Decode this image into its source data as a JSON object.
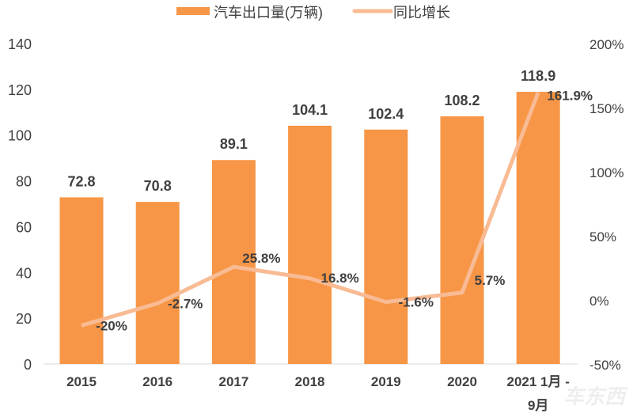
{
  "chart_data": {
    "type": "bar+line",
    "categories": [
      "2015",
      "2016",
      "2017",
      "2018",
      "2019",
      "2020",
      "2021 1月 - 9月"
    ],
    "category_lines": [
      [
        "2015"
      ],
      [
        "2016"
      ],
      [
        "2017"
      ],
      [
        "2018"
      ],
      [
        "2019"
      ],
      [
        "2020"
      ],
      [
        "2021 1月 -",
        "9月"
      ]
    ],
    "series": [
      {
        "name": "汽车出口量(万辆)",
        "type": "bar",
        "axis": "left",
        "values": [
          72.8,
          70.8,
          89.1,
          104.1,
          102.4,
          108.2,
          118.9
        ],
        "labels": [
          "72.8",
          "70.8",
          "89.1",
          "104.1",
          "102.4",
          "108.2",
          "118.9"
        ],
        "color": "#F79646"
      },
      {
        "name": "同比增长",
        "type": "line",
        "axis": "right",
        "values": [
          -20,
          -2.7,
          25.8,
          16.8,
          -1.6,
          5.7,
          161.9
        ],
        "labels": [
          "-20%",
          "-2.7%",
          "25.8%",
          "16.8%",
          "-1.6%",
          "5.7%",
          "161.9%"
        ],
        "color": "#F9BB94"
      }
    ],
    "left_axis": {
      "range": [
        0,
        140
      ],
      "ticks": [
        "0",
        "20",
        "40",
        "60",
        "80",
        "100",
        "120",
        "140"
      ]
    },
    "right_axis": {
      "range": [
        -50,
        200
      ],
      "ticks": [
        "-50%",
        "0%",
        "50%",
        "100%",
        "150%",
        "200%"
      ]
    },
    "grid": false,
    "legend": "top",
    "watermark": "车东西"
  }
}
